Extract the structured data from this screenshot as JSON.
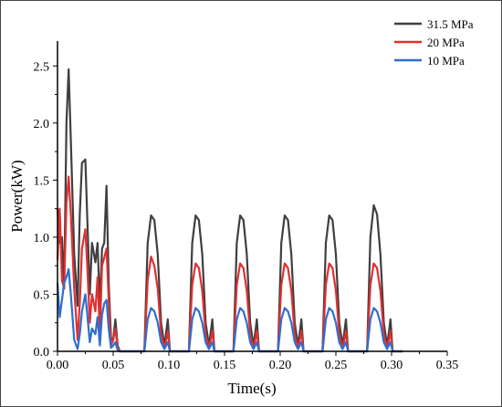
{
  "chart_data": {
    "type": "line",
    "title": "",
    "xlabel": "Time(s)",
    "ylabel": "Power(kW)",
    "xlim": [
      0.0,
      0.35
    ],
    "ylim": [
      0.0,
      2.75
    ],
    "xticks": [
      "0.00",
      "0.05",
      "0.10",
      "0.15",
      "0.20",
      "0.25",
      "0.30",
      "0.35"
    ],
    "yticks": [
      "0.0",
      "0.5",
      "1.0",
      "1.5",
      "2.0",
      "2.5"
    ],
    "legend_position": "top-right",
    "grid": false,
    "series": [
      {
        "name": "31.5 MPa",
        "color": "#3f3f3f",
        "x": [
          0.0,
          0.002,
          0.004,
          0.006,
          0.008,
          0.01,
          0.012,
          0.015,
          0.018,
          0.02,
          0.022,
          0.025,
          0.027,
          0.029,
          0.031,
          0.034,
          0.036,
          0.038,
          0.04,
          0.042,
          0.044,
          0.046,
          0.048,
          0.05,
          0.052,
          0.054,
          0.056,
          0.058,
          0.063,
          0.078,
          0.081,
          0.084,
          0.087,
          0.09,
          0.093,
          0.096,
          0.098,
          0.099,
          0.101,
          0.103,
          0.118,
          0.121,
          0.124,
          0.127,
          0.13,
          0.133,
          0.136,
          0.138,
          0.139,
          0.141,
          0.143,
          0.158,
          0.161,
          0.164,
          0.167,
          0.17,
          0.173,
          0.176,
          0.178,
          0.179,
          0.181,
          0.183,
          0.198,
          0.201,
          0.204,
          0.207,
          0.21,
          0.213,
          0.216,
          0.218,
          0.219,
          0.221,
          0.223,
          0.238,
          0.241,
          0.244,
          0.247,
          0.25,
          0.253,
          0.256,
          0.258,
          0.259,
          0.261,
          0.263,
          0.278,
          0.281,
          0.284,
          0.287,
          0.29,
          0.293,
          0.296,
          0.298,
          0.299,
          0.301,
          0.303,
          0.31
        ],
        "y": [
          1.25,
          0.95,
          1.0,
          0.55,
          2.0,
          2.47,
          1.85,
          0.85,
          0.4,
          1.2,
          1.65,
          1.68,
          1.1,
          0.5,
          0.95,
          0.78,
          0.95,
          0.4,
          0.9,
          0.95,
          1.45,
          0.6,
          0.12,
          0.1,
          0.28,
          0.05,
          0.0,
          0.0,
          0.0,
          0.0,
          0.95,
          1.19,
          1.15,
          0.85,
          0.25,
          0.05,
          0.2,
          0.28,
          0.0,
          0.0,
          0.0,
          0.95,
          1.19,
          1.15,
          0.85,
          0.25,
          0.05,
          0.2,
          0.28,
          0.0,
          0.0,
          0.0,
          0.95,
          1.19,
          1.15,
          0.85,
          0.25,
          0.05,
          0.2,
          0.28,
          0.0,
          0.0,
          0.0,
          0.95,
          1.19,
          1.15,
          0.85,
          0.25,
          0.05,
          0.2,
          0.28,
          0.0,
          0.0,
          0.0,
          0.95,
          1.19,
          1.15,
          0.85,
          0.25,
          0.05,
          0.2,
          0.28,
          0.0,
          0.0,
          0.0,
          1.0,
          1.28,
          1.2,
          0.85,
          0.25,
          0.05,
          0.2,
          0.28,
          0.0,
          0.0,
          0.0
        ]
      },
      {
        "name": "20 MPa",
        "color": "#e03030",
        "x": [
          0.0,
          0.002,
          0.004,
          0.006,
          0.008,
          0.01,
          0.012,
          0.015,
          0.018,
          0.02,
          0.022,
          0.025,
          0.027,
          0.029,
          0.031,
          0.034,
          0.036,
          0.038,
          0.04,
          0.042,
          0.044,
          0.046,
          0.048,
          0.05,
          0.052,
          0.054,
          0.056,
          0.058,
          0.063,
          0.078,
          0.081,
          0.084,
          0.087,
          0.09,
          0.093,
          0.096,
          0.098,
          0.099,
          0.101,
          0.103,
          0.118,
          0.121,
          0.124,
          0.127,
          0.13,
          0.133,
          0.136,
          0.138,
          0.139,
          0.141,
          0.143,
          0.158,
          0.161,
          0.164,
          0.167,
          0.17,
          0.173,
          0.176,
          0.178,
          0.179,
          0.181,
          0.183,
          0.198,
          0.201,
          0.204,
          0.207,
          0.21,
          0.213,
          0.216,
          0.218,
          0.219,
          0.221,
          0.223,
          0.238,
          0.241,
          0.244,
          0.247,
          0.25,
          0.253,
          0.256,
          0.258,
          0.259,
          0.261,
          0.263,
          0.278,
          0.281,
          0.284,
          0.287,
          0.29,
          0.293,
          0.296,
          0.298,
          0.299,
          0.301,
          0.303,
          0.31
        ],
        "y": [
          0.8,
          1.25,
          0.62,
          0.55,
          1.3,
          1.53,
          1.2,
          0.55,
          0.1,
          0.42,
          0.9,
          1.07,
          0.7,
          0.25,
          0.5,
          0.35,
          0.65,
          0.15,
          0.75,
          0.82,
          0.9,
          0.45,
          0.05,
          0.1,
          0.2,
          0.03,
          0.0,
          0.0,
          0.0,
          0.0,
          0.62,
          0.83,
          0.75,
          0.55,
          0.15,
          0.03,
          0.12,
          0.18,
          0.0,
          0.0,
          0.0,
          0.58,
          0.77,
          0.73,
          0.53,
          0.15,
          0.03,
          0.12,
          0.18,
          0.0,
          0.0,
          0.0,
          0.58,
          0.77,
          0.73,
          0.53,
          0.15,
          0.03,
          0.12,
          0.18,
          0.0,
          0.0,
          0.0,
          0.58,
          0.77,
          0.73,
          0.53,
          0.15,
          0.03,
          0.12,
          0.18,
          0.0,
          0.0,
          0.0,
          0.58,
          0.77,
          0.73,
          0.53,
          0.15,
          0.03,
          0.12,
          0.18,
          0.0,
          0.0,
          0.0,
          0.58,
          0.77,
          0.73,
          0.53,
          0.15,
          0.03,
          0.12,
          0.18,
          0.0,
          0.0,
          0.0
        ]
      },
      {
        "name": "10 MPa",
        "color": "#2e6fd0",
        "x": [
          0.0,
          0.002,
          0.004,
          0.006,
          0.008,
          0.01,
          0.012,
          0.015,
          0.018,
          0.02,
          0.022,
          0.025,
          0.027,
          0.029,
          0.031,
          0.034,
          0.036,
          0.038,
          0.04,
          0.042,
          0.044,
          0.046,
          0.048,
          0.05,
          0.052,
          0.054,
          0.056,
          0.058,
          0.063,
          0.078,
          0.081,
          0.084,
          0.087,
          0.09,
          0.093,
          0.096,
          0.098,
          0.099,
          0.101,
          0.103,
          0.118,
          0.121,
          0.124,
          0.127,
          0.13,
          0.133,
          0.136,
          0.138,
          0.139,
          0.141,
          0.143,
          0.158,
          0.161,
          0.164,
          0.167,
          0.17,
          0.173,
          0.176,
          0.178,
          0.179,
          0.181,
          0.183,
          0.198,
          0.201,
          0.204,
          0.207,
          0.21,
          0.213,
          0.216,
          0.218,
          0.219,
          0.221,
          0.223,
          0.238,
          0.241,
          0.244,
          0.247,
          0.25,
          0.253,
          0.256,
          0.258,
          0.259,
          0.261,
          0.263,
          0.278,
          0.281,
          0.284,
          0.287,
          0.29,
          0.293,
          0.296,
          0.298,
          0.299,
          0.301,
          0.303,
          0.31
        ],
        "y": [
          0.6,
          0.3,
          0.45,
          0.6,
          0.65,
          0.72,
          0.5,
          0.1,
          0.02,
          0.15,
          0.35,
          0.5,
          0.3,
          0.08,
          0.2,
          0.15,
          0.3,
          0.05,
          0.32,
          0.42,
          0.45,
          0.2,
          0.03,
          0.05,
          0.08,
          0.01,
          0.0,
          0.0,
          0.0,
          0.0,
          0.28,
          0.38,
          0.35,
          0.25,
          0.08,
          0.02,
          0.06,
          0.08,
          0.0,
          0.0,
          0.0,
          0.28,
          0.38,
          0.35,
          0.25,
          0.08,
          0.02,
          0.06,
          0.08,
          0.0,
          0.0,
          0.0,
          0.28,
          0.38,
          0.35,
          0.25,
          0.08,
          0.02,
          0.06,
          0.08,
          0.0,
          0.0,
          0.0,
          0.28,
          0.38,
          0.35,
          0.25,
          0.08,
          0.02,
          0.06,
          0.08,
          0.0,
          0.0,
          0.0,
          0.28,
          0.38,
          0.35,
          0.25,
          0.08,
          0.02,
          0.06,
          0.08,
          0.0,
          0.0,
          0.0,
          0.28,
          0.38,
          0.35,
          0.25,
          0.08,
          0.02,
          0.06,
          0.08,
          0.0,
          0.0,
          0.0
        ]
      }
    ]
  }
}
